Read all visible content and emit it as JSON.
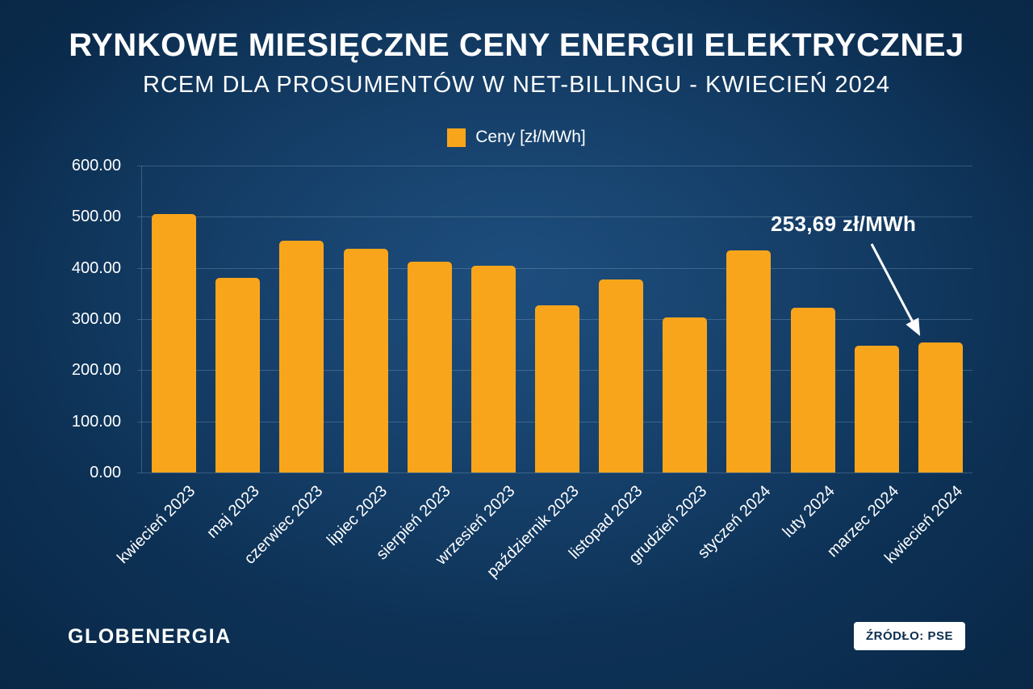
{
  "header": {
    "title": "RYNKOWE MIESIĘCZNE CENY ENERGII ELEKTRYCZNEJ",
    "subtitle": "RCEM DLA PROSUMENTÓW W NET-BILLINGU - KWIECIEŃ 2024"
  },
  "legend": {
    "label": "Ceny [zł/MWh]"
  },
  "annotation": {
    "label": "253,69 zł/MWh"
  },
  "footer": {
    "brand": "GLOBENERGIA",
    "source": "ŹRÓDŁO: PSE"
  },
  "colors": {
    "bar": "#F9A51B",
    "background": "#0c2f52",
    "text": "#ffffff"
  },
  "chart_data": {
    "type": "bar",
    "title": "RYNKOWE MIESIĘCZNE CENY ENERGII ELEKTRYCZNEJ",
    "subtitle": "RCEM DLA PROSUMENTÓW W NET-BILLINGU - KWIECIEŃ 2024",
    "series_label": "Ceny [zł/MWh]",
    "categories": [
      "kwiecień 2023",
      "maj 2023",
      "czerwiec 2023",
      "lipiec 2023",
      "sierpień 2023",
      "wrzesień 2023",
      "październik 2023",
      "listopad 2023",
      "grudzień 2023",
      "styczeń 2024",
      "luty 2024",
      "marzec 2024",
      "kwiecień 2024"
    ],
    "values": [
      505,
      380,
      453,
      437,
      412,
      405,
      327,
      377,
      303,
      434,
      322,
      248,
      253.69
    ],
    "ylim": [
      0,
      600
    ],
    "yticks": [
      "600.00",
      "500.00",
      "400.00",
      "300.00",
      "200.00",
      "100.00",
      "0.00"
    ],
    "bar_color": "#F9A51B",
    "grid": true,
    "legend_position": "top-center",
    "annotation": {
      "text": "253,69 zł/MWh",
      "target_category": "kwiecień 2024"
    },
    "source": "ŹRÓDŁO: PSE"
  }
}
